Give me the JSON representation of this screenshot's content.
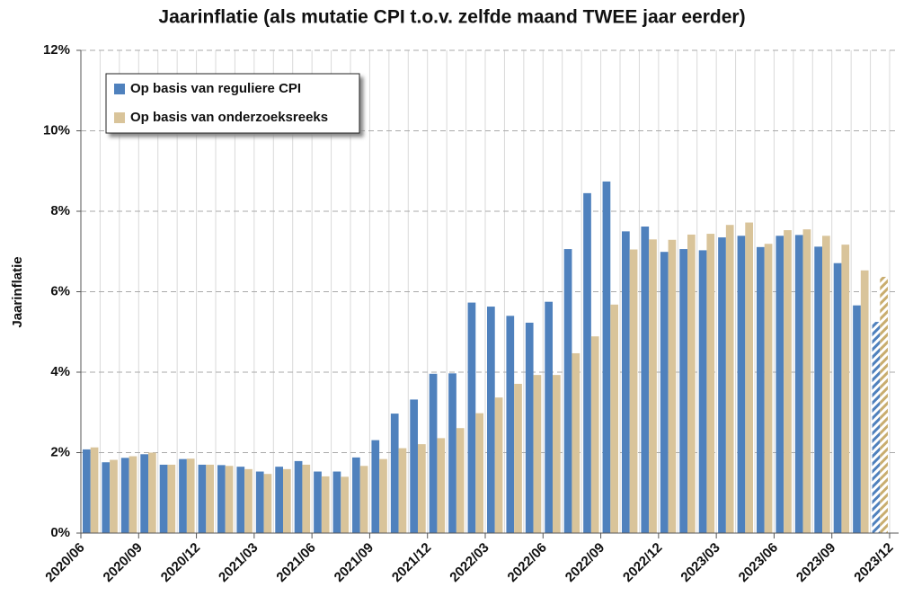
{
  "chart_data": {
    "type": "bar",
    "title": "Jaarinflatie (als mutatie CPI t.o.v. zelfde maand TWEE jaar eerder)",
    "y_label": "Jaarinflatie",
    "categories": [
      "2020/06",
      null,
      null,
      "2020/09",
      null,
      null,
      "2020/12",
      null,
      null,
      "2021/03",
      null,
      null,
      "2021/06",
      null,
      null,
      "2021/09",
      null,
      null,
      "2021/12",
      null,
      null,
      "2022/03",
      null,
      null,
      "2022/06",
      null,
      null,
      "2022/09",
      null,
      null,
      "2022/12",
      null,
      null,
      "2023/03",
      null,
      null,
      "2023/06",
      null,
      null,
      "2023/09",
      null,
      null,
      "2023/12"
    ],
    "series": [
      {
        "name": "Op basis van reguliere CPI",
        "color": "#4f81bd",
        "values": [
          null,
          2.08,
          1.76,
          1.87,
          1.96,
          1.7,
          1.84,
          1.7,
          1.69,
          1.65,
          1.53,
          1.65,
          1.79,
          1.53,
          1.53,
          1.88,
          2.31,
          2.97,
          3.32,
          3.96,
          3.97,
          5.73,
          5.63,
          5.4,
          5.23,
          5.75,
          7.06,
          8.45,
          8.74,
          7.5,
          7.62,
          6.99,
          7.06,
          7.03,
          7.35,
          7.39,
          7.11,
          7.39,
          7.41,
          7.12,
          6.71,
          5.66,
          5.25
        ]
      },
      {
        "name": "Op basis van onderzoeksreeks",
        "color": "#d9c49a",
        "values": [
          null,
          2.13,
          1.82,
          1.91,
          2.0,
          1.7,
          1.85,
          1.7,
          1.67,
          1.59,
          1.47,
          1.59,
          1.7,
          1.41,
          1.4,
          1.67,
          1.84,
          2.11,
          2.21,
          2.36,
          2.61,
          2.98,
          3.37,
          3.71,
          3.93,
          3.93,
          4.47,
          4.89,
          5.68,
          7.05,
          7.3,
          7.29,
          7.42,
          7.44,
          7.66,
          7.72,
          7.19,
          7.53,
          7.55,
          7.39,
          7.17,
          6.53,
          6.37
        ]
      }
    ],
    "hatch_last_point": true,
    "ylim": [
      0,
      12
    ],
    "yticks": [
      {
        "value": 0,
        "label": "0%"
      },
      {
        "value": 2,
        "label": "2%"
      },
      {
        "value": 4,
        "label": "4%"
      },
      {
        "value": 6,
        "label": "6%"
      },
      {
        "value": 8,
        "label": "8%"
      },
      {
        "value": 10,
        "label": "10%"
      },
      {
        "value": 12,
        "label": "12%"
      }
    ],
    "grid": true,
    "legend": "upper left"
  }
}
